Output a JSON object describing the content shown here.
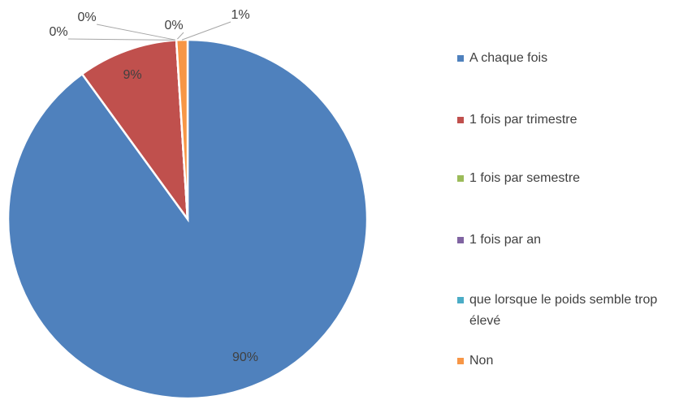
{
  "chart_data": {
    "type": "pie",
    "categories": [
      "A chaque fois",
      "1 fois par trimestre",
      "1 fois par semestre",
      "1 fois par an",
      "que lorsque le poids semble trop élevé",
      "Non"
    ],
    "values": [
      90,
      9,
      0,
      0,
      0,
      1
    ],
    "value_labels": [
      "90%",
      "9%",
      "0%",
      "0%",
      "0%",
      "1%"
    ],
    "colors": [
      "#4f81bd",
      "#c0504d",
      "#9bbb59",
      "#8064a2",
      "#4bacc6",
      "#f79646"
    ],
    "legend": "right"
  }
}
